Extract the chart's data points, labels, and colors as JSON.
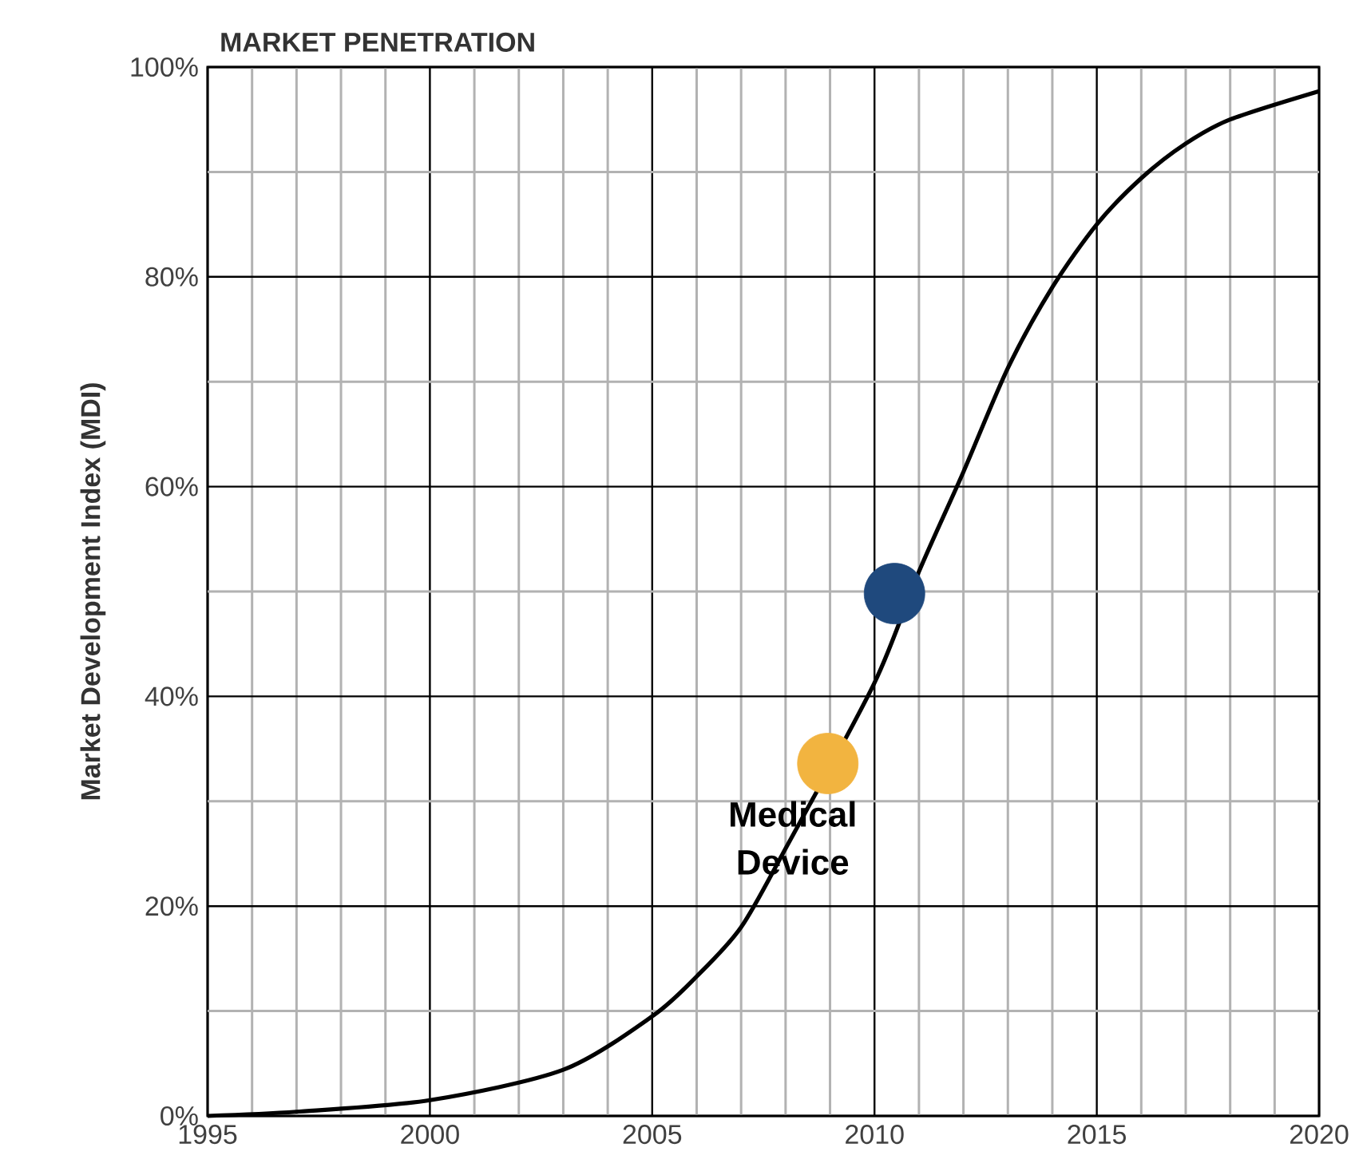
{
  "chart_data": {
    "type": "line",
    "title": "MARKET PENETRATION",
    "ylabel": "Market Development Index (MDI)",
    "xlim": [
      1995,
      2020
    ],
    "ylim": [
      0,
      100
    ],
    "xticks": [
      1995,
      {
        "value": 1996,
        "label": null
      },
      {
        "value": 1997,
        "label": null
      },
      {
        "value": 1998,
        "label": null
      },
      {
        "value": 1999,
        "label": null
      },
      2000,
      {
        "value": 2001,
        "label": null
      },
      {
        "value": 2002,
        "label": null
      },
      {
        "value": 2003,
        "label": null
      },
      {
        "value": 2004,
        "label": null
      },
      2005,
      {
        "value": 2006,
        "label": null
      },
      {
        "value": 2007,
        "label": null
      },
      {
        "value": 2008,
        "label": null
      },
      {
        "value": 2009,
        "label": null
      },
      2010,
      {
        "value": 2011,
        "label": null
      },
      {
        "value": 2012,
        "label": null
      },
      {
        "value": 2013,
        "label": null
      },
      {
        "value": 2014,
        "label": null
      },
      2015,
      {
        "value": 2016,
        "label": null
      },
      {
        "value": 2017,
        "label": null
      },
      {
        "value": 2018,
        "label": null
      },
      {
        "value": 2019,
        "label": null
      },
      2020
    ],
    "yticks": [
      {
        "value": 0,
        "label": "0%"
      },
      {
        "value": 10,
        "label": null
      },
      {
        "value": 20,
        "label": "20%"
      },
      {
        "value": 30,
        "label": null
      },
      {
        "value": 40,
        "label": "40%"
      },
      {
        "value": 50,
        "label": null
      },
      {
        "value": 60,
        "label": "60%"
      },
      {
        "value": 70,
        "label": null
      },
      {
        "value": 80,
        "label": "80%"
      },
      {
        "value": 90,
        "label": null
      },
      {
        "value": 100,
        "label": "100%"
      }
    ],
    "grid": true,
    "series": [
      {
        "color": "#000000",
        "marker": "none",
        "x": [
          1995,
          1997,
          2000,
          2003,
          2005,
          2006,
          2007,
          2008,
          2010,
          2011,
          2012,
          2013,
          2014,
          2015,
          2016,
          2017,
          2018,
          2020
        ],
        "values": [
          0,
          0.4,
          1.5,
          4.4,
          9.5,
          13.3,
          18,
          25.5,
          41.3,
          51.9,
          61.4,
          71.3,
          79,
          85,
          89.4,
          92.7,
          95,
          97.7
        ]
      },
      {
        "type": "scatter",
        "name": "Medical Device",
        "color": "#f2b440",
        "marker": "circle",
        "x": [
          2008.95
        ],
        "values": [
          33.6
        ]
      },
      {
        "type": "scatter",
        "color": "#1f497d",
        "marker": "circle",
        "x": [
          2010.45
        ],
        "values": [
          49.8
        ]
      }
    ]
  }
}
